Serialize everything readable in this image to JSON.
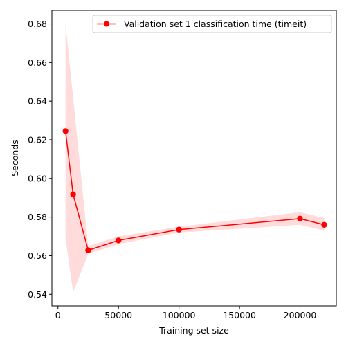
{
  "chart_data": {
    "type": "line",
    "xlabel": "Training set size",
    "ylabel": "Seconds",
    "xlim": [
      -5000,
      230000
    ],
    "ylim": [
      0.534,
      0.687
    ],
    "xticks": [
      0,
      50000,
      100000,
      150000,
      200000
    ],
    "xtick_labels": [
      "0",
      "50000",
      "100000",
      "150000",
      "200000"
    ],
    "yticks": [
      0.54,
      0.56,
      0.58,
      0.6,
      0.62,
      0.64,
      0.66,
      0.68
    ],
    "ytick_labels": [
      "0.54",
      "0.56",
      "0.58",
      "0.60",
      "0.62",
      "0.64",
      "0.66",
      "0.68"
    ],
    "grid": false,
    "legend_position": "top-right",
    "series": [
      {
        "name": "Validation set 1 classification time (timeit)",
        "color": "#ff0000",
        "band_color": "#ffcccc",
        "x": [
          6250,
          12500,
          25000,
          50000,
          100000,
          200000,
          220000
        ],
        "y": [
          0.6245,
          0.5918,
          0.5628,
          0.5679,
          0.5735,
          0.5792,
          0.576
        ],
        "lower": [
          0.569,
          0.541,
          0.561,
          0.566,
          0.572,
          0.576,
          0.573
        ],
        "upper": [
          0.6805,
          0.642,
          0.565,
          0.57,
          0.575,
          0.5825,
          0.5795
        ]
      }
    ]
  }
}
